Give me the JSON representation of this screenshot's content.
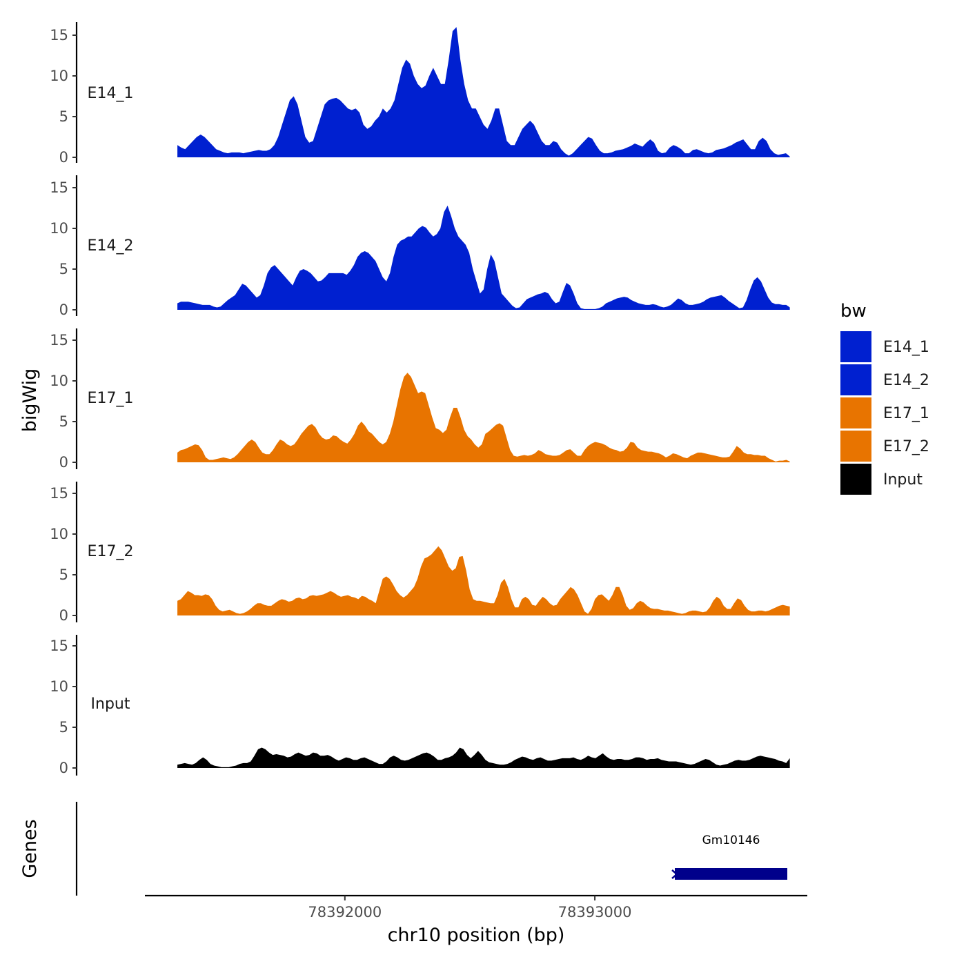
{
  "chart_data": {
    "type": "area",
    "ylabel": "bigWig",
    "genes_label": "Genes",
    "xlabel": "chr10 position (bp)",
    "x_ticks": [
      78392000,
      78393000
    ],
    "x_tick_labels": [
      "78392000",
      "78393000"
    ],
    "x_range": [
      78391200,
      78393850
    ],
    "data_x_range": [
      78391330,
      78393780
    ],
    "y_ticks": [
      0,
      5,
      10,
      15
    ],
    "y_tick_labels": [
      "0",
      "5",
      "10",
      "15"
    ],
    "ylim": [
      0,
      16.5
    ],
    "legend": {
      "title": "bw",
      "entries": [
        {
          "label": "E14_1",
          "color": "#0020d0"
        },
        {
          "label": "E14_2",
          "color": "#0020d0"
        },
        {
          "label": "E17_1",
          "color": "#e87400"
        },
        {
          "label": "E17_2",
          "color": "#e87400"
        },
        {
          "label": "Input",
          "color": "#000000"
        }
      ]
    },
    "series": [
      {
        "name": "E14_1",
        "color": "#0020d0",
        "values": [
          1.5,
          1.2,
          1,
          1.5,
          2,
          2.5,
          2.8,
          2.5,
          2,
          1.5,
          1,
          0.8,
          0.6,
          0.5,
          0.6,
          0.6,
          0.6,
          0.5,
          0.6,
          0.7,
          0.8,
          0.9,
          0.8,
          0.8,
          1,
          1.5,
          2.5,
          4,
          5.5,
          7,
          7.5,
          6.5,
          4.5,
          2.5,
          1.8,
          2,
          3.5,
          5,
          6.5,
          7,
          7.2,
          7.3,
          7,
          6.5,
          6,
          5.8,
          6,
          5.5,
          4,
          3.5,
          3.8,
          4.5,
          5,
          6,
          5.5,
          6,
          7,
          9,
          11,
          12,
          11.5,
          10,
          9,
          8.5,
          8.8,
          10,
          11,
          10,
          9,
          9,
          12,
          15.5,
          16,
          12,
          9,
          7,
          6,
          6,
          5,
          4,
          3.5,
          4.5,
          6,
          6,
          4,
          2,
          1.5,
          1.5,
          2.5,
          3.5,
          4,
          4.5,
          4,
          3,
          2,
          1.5,
          1.5,
          2,
          1.8,
          1,
          0.5,
          0.2,
          0.5,
          1,
          1.5,
          2,
          2.5,
          2.3,
          1.5,
          0.8,
          0.5,
          0.5,
          0.6,
          0.8,
          0.9,
          1,
          1.2,
          1.4,
          1.7,
          1.5,
          1.3,
          1.8,
          2.2,
          1.8,
          0.8,
          0.5,
          0.6,
          1.2,
          1.5,
          1.3,
          1,
          0.5,
          0.5,
          0.9,
          1,
          0.8,
          0.6,
          0.5,
          0.6,
          0.9,
          1,
          1.1,
          1.3,
          1.5,
          1.8,
          2,
          2.2,
          1.6,
          1,
          1,
          2,
          2.4,
          2,
          1,
          0.5,
          0.3,
          0.4,
          0.5,
          0.1
        ]
      },
      {
        "name": "E14_2",
        "color": "#0020d0",
        "values": [
          0.8,
          1,
          1,
          1,
          0.9,
          0.8,
          0.7,
          0.6,
          0.6,
          0.6,
          0.4,
          0.3,
          0.4,
          0.8,
          1.2,
          1.5,
          1.8,
          2.5,
          3.2,
          3,
          2.5,
          2,
          1.5,
          1.8,
          3,
          4.5,
          5.2,
          5.5,
          5,
          4.5,
          4,
          3.5,
          3,
          4,
          4.8,
          5,
          4.8,
          4.5,
          4,
          3.5,
          3.6,
          4,
          4.5,
          4.5,
          4.5,
          4.5,
          4.5,
          4.3,
          4.8,
          5.5,
          6.5,
          7,
          7.2,
          7,
          6.5,
          6,
          5,
          4,
          3.5,
          4.5,
          6.5,
          8,
          8.5,
          8.7,
          9,
          9,
          9.5,
          10,
          10.3,
          10.1,
          9.5,
          9,
          9.3,
          10,
          12,
          12.8,
          11.5,
          10,
          9,
          8.5,
          8,
          7,
          5,
          3.5,
          2,
          2.5,
          5,
          6.8,
          6,
          4,
          2,
          1.5,
          1,
          0.5,
          0.2,
          0.3,
          0.8,
          1.3,
          1.5,
          1.7,
          1.9,
          2,
          2.2,
          2,
          1.3,
          0.8,
          1,
          2.2,
          3.3,
          3,
          2,
          0.8,
          0.2,
          0.1,
          0.1,
          0.1,
          0.1,
          0.2,
          0.4,
          0.8,
          1,
          1.2,
          1.4,
          1.5,
          1.6,
          1.5,
          1.2,
          1,
          0.8,
          0.7,
          0.6,
          0.6,
          0.7,
          0.6,
          0.4,
          0.3,
          0.4,
          0.6,
          1,
          1.4,
          1.2,
          0.8,
          0.6,
          0.6,
          0.7,
          0.8,
          1,
          1.3,
          1.5,
          1.6,
          1.7,
          1.8,
          1.5,
          1.1,
          0.8,
          0.5,
          0.2,
          0.3,
          1.2,
          2.5,
          3.6,
          4,
          3.5,
          2.5,
          1.5,
          0.9,
          0.7,
          0.7,
          0.6,
          0.6,
          0.3
        ]
      },
      {
        "name": "E17_1",
        "color": "#e87400",
        "values": [
          1.2,
          1.5,
          1.6,
          1.8,
          2,
          2.2,
          2.1,
          1.5,
          0.6,
          0.3,
          0.3,
          0.4,
          0.5,
          0.6,
          0.5,
          0.4,
          0.6,
          1,
          1.5,
          2,
          2.5,
          2.8,
          2.5,
          1.8,
          1.2,
          1,
          1,
          1.5,
          2.2,
          2.8,
          2.6,
          2.2,
          2,
          2.2,
          2.8,
          3.5,
          4,
          4.5,
          4.7,
          4.3,
          3.5,
          3,
          2.8,
          2.9,
          3.3,
          3.2,
          2.8,
          2.5,
          2.3,
          2.8,
          3.5,
          4.5,
          5,
          4.5,
          3.8,
          3.5,
          3,
          2.5,
          2.2,
          2.5,
          3.5,
          5,
          7,
          9,
          10.5,
          11,
          10.5,
          9.5,
          8.5,
          8.7,
          8.5,
          7,
          5.5,
          4.2,
          4,
          3.6,
          4,
          5.5,
          6.7,
          6.7,
          5.5,
          4,
          3.2,
          2.8,
          2.2,
          1.8,
          2.2,
          3.5,
          3.8,
          4.2,
          4.6,
          4.8,
          4.5,
          3,
          1.5,
          0.8,
          0.7,
          0.8,
          0.9,
          0.8,
          0.9,
          1.1,
          1.5,
          1.3,
          1,
          0.9,
          0.8,
          0.8,
          0.9,
          1.2,
          1.5,
          1.6,
          1.2,
          0.8,
          0.8,
          1.5,
          2,
          2.3,
          2.5,
          2.4,
          2.3,
          2.1,
          1.8,
          1.6,
          1.5,
          1.3,
          1.4,
          1.8,
          2.5,
          2.4,
          1.8,
          1.5,
          1.4,
          1.3,
          1.3,
          1.2,
          1.1,
          0.9,
          0.6,
          0.8,
          1.1,
          1,
          0.8,
          0.6,
          0.5,
          0.8,
          1,
          1.2,
          1.2,
          1.1,
          1,
          0.9,
          0.8,
          0.7,
          0.6,
          0.6,
          0.7,
          1.3,
          2,
          1.7,
          1.2,
          1,
          1,
          0.9,
          0.9,
          0.8,
          0.8,
          0.5,
          0.3,
          0.1,
          0.2,
          0.2,
          0.3,
          0.1
        ]
      },
      {
        "name": "E17_2",
        "color": "#e87400",
        "values": [
          1.8,
          2,
          2.5,
          3,
          2.8,
          2.5,
          2.5,
          2.4,
          2.6,
          2.5,
          2,
          1.2,
          0.7,
          0.5,
          0.6,
          0.7,
          0.5,
          0.3,
          0.2,
          0.3,
          0.5,
          0.8,
          1.2,
          1.5,
          1.5,
          1.3,
          1.2,
          1.2,
          1.5,
          1.8,
          2,
          1.9,
          1.7,
          1.8,
          2.1,
          2.2,
          2,
          2.1,
          2.4,
          2.5,
          2.4,
          2.5,
          2.6,
          2.8,
          3,
          2.8,
          2.5,
          2.3,
          2.4,
          2.5,
          2.3,
          2.2,
          2,
          2.4,
          2.3,
          2,
          1.8,
          1.5,
          3,
          4.5,
          4.8,
          4.5,
          3.8,
          3,
          2.5,
          2.2,
          2.5,
          3,
          3.5,
          4.5,
          6,
          7,
          7.2,
          7.5,
          8,
          8.5,
          8,
          7,
          6,
          5.5,
          5.8,
          7.2,
          7.3,
          5.5,
          3.2,
          2,
          1.8,
          1.8,
          1.7,
          1.6,
          1.5,
          1.5,
          2.5,
          4,
          4.5,
          3.5,
          2,
          1,
          1,
          2,
          2.3,
          2,
          1.3,
          1.2,
          1.8,
          2.3,
          2,
          1.5,
          1.2,
          1.3,
          2,
          2.5,
          3,
          3.5,
          3.2,
          2.5,
          1.5,
          0.5,
          0.2,
          0.8,
          2,
          2.5,
          2.6,
          2.2,
          1.8,
          2.5,
          3.5,
          3.5,
          2.5,
          1.2,
          0.7,
          0.9,
          1.5,
          1.8,
          1.6,
          1.2,
          0.9,
          0.8,
          0.8,
          0.7,
          0.6,
          0.6,
          0.5,
          0.4,
          0.3,
          0.2,
          0.3,
          0.5,
          0.6,
          0.6,
          0.5,
          0.4,
          0.5,
          1,
          1.8,
          2.3,
          2,
          1.2,
          0.8,
          0.8,
          1.5,
          2.1,
          1.9,
          1.2,
          0.7,
          0.5,
          0.5,
          0.6,
          0.6,
          0.5,
          0.6,
          0.8,
          1,
          1.2,
          1.3,
          1.2,
          1.1
        ]
      },
      {
        "name": "Input",
        "color": "#000000",
        "values": [
          0.4,
          0.5,
          0.6,
          0.5,
          0.4,
          0.6,
          1,
          1.3,
          1,
          0.5,
          0.3,
          0.2,
          0.1,
          0.1,
          0.1,
          0.2,
          0.3,
          0.5,
          0.6,
          0.6,
          0.8,
          1.5,
          2.3,
          2.5,
          2.3,
          1.9,
          1.6,
          1.7,
          1.6,
          1.5,
          1.3,
          1.4,
          1.7,
          1.9,
          1.7,
          1.5,
          1.6,
          1.9,
          1.8,
          1.5,
          1.5,
          1.6,
          1.4,
          1.1,
          0.9,
          1.1,
          1.3,
          1.2,
          1,
          1,
          1.2,
          1.3,
          1.1,
          0.9,
          0.7,
          0.5,
          0.5,
          0.8,
          1.3,
          1.5,
          1.3,
          1,
          0.9,
          1,
          1.2,
          1.4,
          1.6,
          1.8,
          1.9,
          1.7,
          1.4,
          1,
          1,
          1.2,
          1.3,
          1.5,
          1.9,
          2.5,
          2.3,
          1.6,
          1.2,
          1.6,
          2.1,
          1.6,
          1,
          0.7,
          0.6,
          0.5,
          0.4,
          0.4,
          0.5,
          0.7,
          1,
          1.2,
          1.4,
          1.3,
          1.1,
          1,
          1.2,
          1.3,
          1.1,
          0.9,
          0.9,
          1,
          1.1,
          1.2,
          1.2,
          1.2,
          1.3,
          1.1,
          1,
          1.2,
          1.5,
          1.3,
          1.2,
          1.5,
          1.8,
          1.4,
          1.1,
          1,
          1.1,
          1.1,
          1,
          1,
          1.1,
          1.3,
          1.3,
          1.2,
          1,
          1.1,
          1.1,
          1.2,
          1,
          0.9,
          0.8,
          0.8,
          0.8,
          0.7,
          0.6,
          0.5,
          0.4,
          0.5,
          0.7,
          0.9,
          1.1,
          1,
          0.7,
          0.4,
          0.3,
          0.4,
          0.5,
          0.7,
          0.9,
          1,
          0.9,
          0.9,
          1,
          1.2,
          1.4,
          1.5,
          1.4,
          1.3,
          1.2,
          1.1,
          0.9,
          0.8,
          0.6,
          1.2
        ]
      }
    ],
    "genes": [
      {
        "name": "Gm10146",
        "start": 78393320,
        "end": 78393770,
        "strand": "-",
        "color": "#00008b"
      }
    ]
  }
}
